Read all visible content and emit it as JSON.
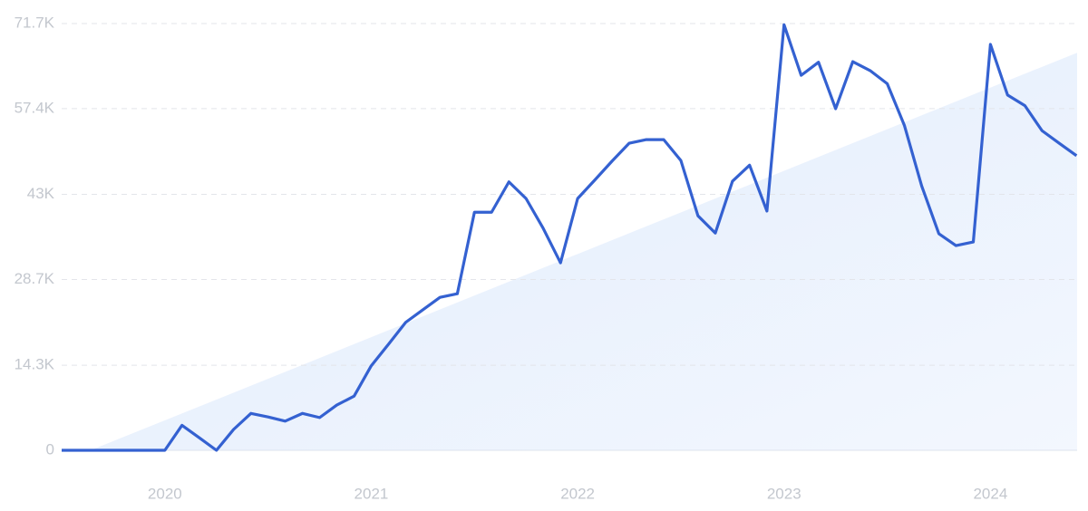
{
  "chart_data": {
    "type": "line",
    "x": [
      2019.5,
      2019.583,
      2019.667,
      2019.75,
      2019.833,
      2019.917,
      2020,
      2020.083,
      2020.167,
      2020.25,
      2020.333,
      2020.417,
      2020.5,
      2020.583,
      2020.667,
      2020.75,
      2020.833,
      2020.917,
      2021,
      2021.083,
      2021.167,
      2021.25,
      2021.333,
      2021.417,
      2021.5,
      2021.583,
      2021.667,
      2021.75,
      2021.833,
      2021.917,
      2022,
      2022.083,
      2022.167,
      2022.25,
      2022.333,
      2022.417,
      2022.5,
      2022.583,
      2022.667,
      2022.75,
      2022.833,
      2022.917,
      2023,
      2023.083,
      2023.167,
      2023.25,
      2023.333,
      2023.417,
      2023.5,
      2023.583,
      2023.667,
      2023.75,
      2023.833,
      2023.917,
      2024,
      2024.083,
      2024.167,
      2024.25,
      2024.333,
      2024.417
    ],
    "series": [
      {
        "color": "#3461d1",
        "values": [
          0,
          0,
          0,
          0,
          0,
          0,
          0,
          4200,
          2100,
          0,
          3500,
          6200,
          5600,
          4900,
          6200,
          5500,
          7600,
          9100,
          14200,
          17800,
          21500,
          23600,
          25700,
          26300,
          40000,
          40000,
          45100,
          42300,
          37300,
          31500,
          42300,
          45400,
          48600,
          51600,
          52200,
          52200,
          48700,
          39400,
          36500,
          45200,
          47900,
          40200,
          71500,
          63000,
          65200,
          57400,
          65300,
          63800,
          61600,
          54600,
          44400,
          36400,
          34400,
          35000,
          68200,
          59700,
          57900,
          53700,
          51600,
          49500
        ]
      }
    ],
    "trend": {
      "x": [
        2019.64,
        2024.42
      ],
      "values": [
        0,
        66800
      ],
      "color": "#e4eefc"
    },
    "xlim": [
      2019.5,
      2024.42
    ],
    "xticks": [
      2020,
      2021,
      2022,
      2023,
      2024
    ],
    "ylim": [
      0,
      71700
    ],
    "yticks": [
      0,
      {
        "value": 14300,
        "label": "14.3K"
      },
      {
        "value": 28700,
        "label": "28.7K"
      },
      {
        "value": 43000,
        "label": "43K"
      },
      {
        "value": 57400,
        "label": "57.4K"
      },
      {
        "value": 71700,
        "label": "71.7K"
      }
    ],
    "grid": true
  }
}
